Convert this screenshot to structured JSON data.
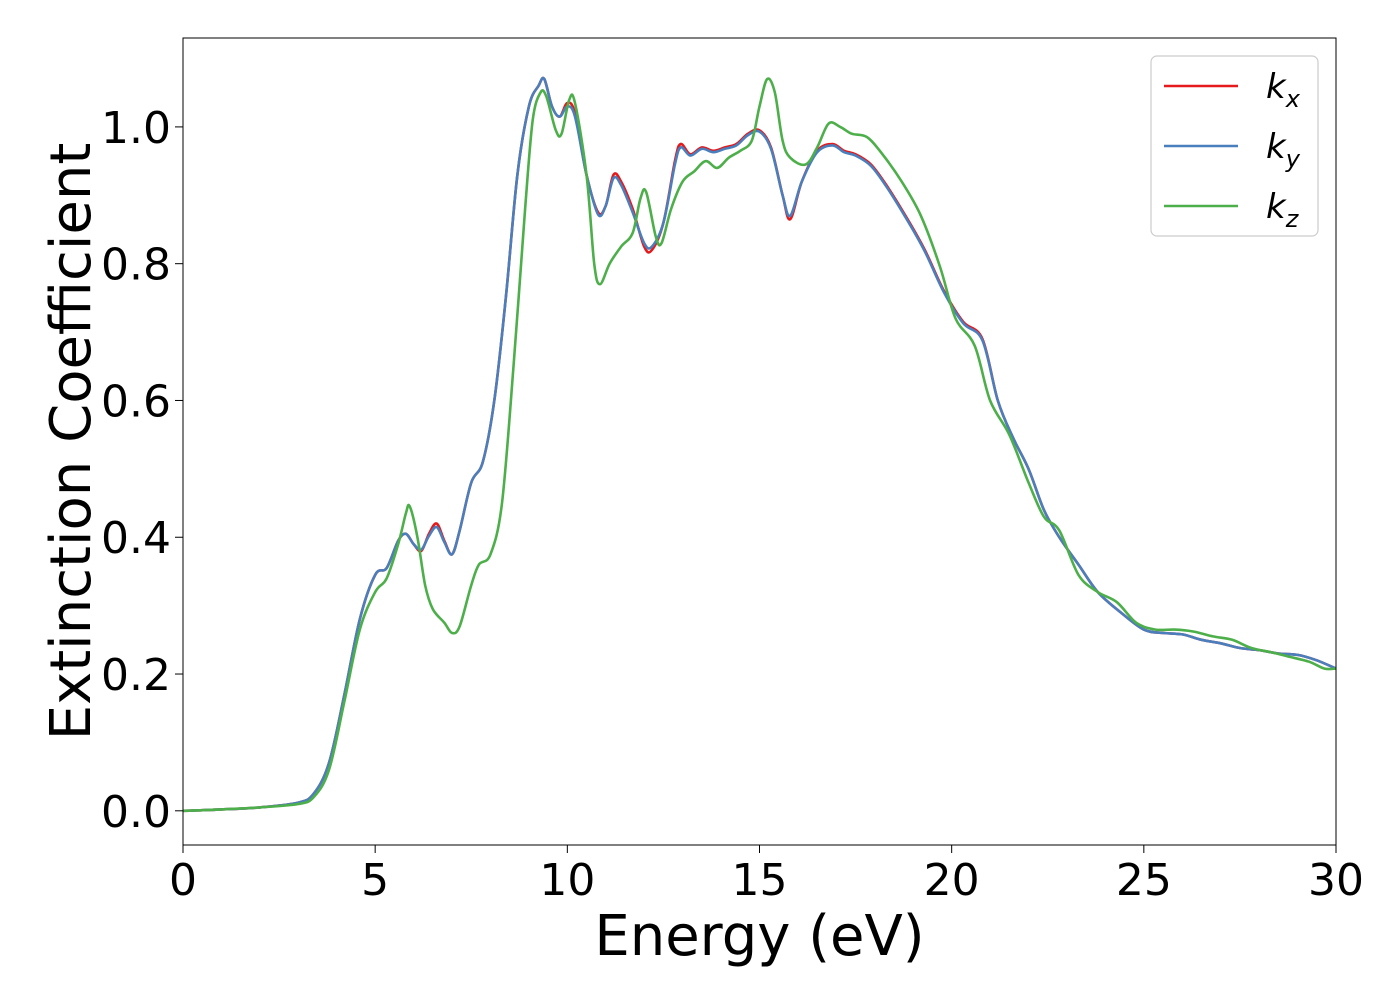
{
  "chart_data": {
    "type": "line",
    "title": "",
    "xlabel": "Energy (eV)",
    "ylabel": "Extinction Coefficient",
    "xlim": [
      0,
      30
    ],
    "ylim": [
      -0.05,
      1.13
    ],
    "xticks": [
      0,
      5,
      10,
      15,
      20,
      25,
      30
    ],
    "xtick_labels": [
      "0",
      "5",
      "10",
      "15",
      "20",
      "25",
      "30"
    ],
    "yticks": [
      0.0,
      0.2,
      0.4,
      0.6,
      0.8,
      1.0
    ],
    "ytick_labels": [
      "0.0",
      "0.2",
      "0.4",
      "0.6",
      "0.8",
      "1.0"
    ],
    "grid": false,
    "legend_position": "top-right",
    "series": [
      {
        "name": "k_x",
        "legend_base": "k",
        "legend_sub": "x",
        "color": "#e41a1c",
        "points": [
          [
            0,
            0.0
          ],
          [
            1,
            0.002
          ],
          [
            2,
            0.005
          ],
          [
            3,
            0.012
          ],
          [
            3.4,
            0.025
          ],
          [
            3.8,
            0.07
          ],
          [
            4.2,
            0.17
          ],
          [
            4.6,
            0.28
          ],
          [
            5.0,
            0.345
          ],
          [
            5.3,
            0.355
          ],
          [
            5.6,
            0.395
          ],
          [
            5.8,
            0.405
          ],
          [
            6.0,
            0.39
          ],
          [
            6.2,
            0.38
          ],
          [
            6.4,
            0.405
          ],
          [
            6.6,
            0.42
          ],
          [
            6.8,
            0.395
          ],
          [
            7.0,
            0.375
          ],
          [
            7.2,
            0.41
          ],
          [
            7.5,
            0.48
          ],
          [
            7.8,
            0.51
          ],
          [
            8.1,
            0.6
          ],
          [
            8.4,
            0.75
          ],
          [
            8.7,
            0.93
          ],
          [
            9.0,
            1.03
          ],
          [
            9.25,
            1.06
          ],
          [
            9.4,
            1.07
          ],
          [
            9.6,
            1.03
          ],
          [
            9.8,
            1.015
          ],
          [
            10.0,
            1.035
          ],
          [
            10.2,
            1.02
          ],
          [
            10.5,
            0.93
          ],
          [
            10.8,
            0.875
          ],
          [
            11.0,
            0.885
          ],
          [
            11.2,
            0.93
          ],
          [
            11.4,
            0.92
          ],
          [
            11.7,
            0.88
          ],
          [
            12.0,
            0.825
          ],
          [
            12.2,
            0.82
          ],
          [
            12.5,
            0.86
          ],
          [
            12.8,
            0.95
          ],
          [
            12.95,
            0.975
          ],
          [
            13.2,
            0.96
          ],
          [
            13.5,
            0.97
          ],
          [
            13.8,
            0.965
          ],
          [
            14.1,
            0.97
          ],
          [
            14.4,
            0.975
          ],
          [
            14.7,
            0.99
          ],
          [
            15.0,
            0.995
          ],
          [
            15.3,
            0.97
          ],
          [
            15.6,
            0.9
          ],
          [
            15.8,
            0.865
          ],
          [
            16.1,
            0.92
          ],
          [
            16.5,
            0.965
          ],
          [
            16.9,
            0.975
          ],
          [
            17.2,
            0.965
          ],
          [
            17.5,
            0.96
          ],
          [
            17.9,
            0.945
          ],
          [
            18.3,
            0.915
          ],
          [
            18.8,
            0.87
          ],
          [
            19.3,
            0.82
          ],
          [
            19.8,
            0.76
          ],
          [
            20.3,
            0.715
          ],
          [
            20.8,
            0.69
          ],
          [
            21.2,
            0.6
          ],
          [
            21.6,
            0.545
          ],
          [
            22.0,
            0.5
          ],
          [
            22.4,
            0.44
          ],
          [
            22.8,
            0.4
          ],
          [
            23.3,
            0.36
          ],
          [
            23.8,
            0.32
          ],
          [
            24.4,
            0.29
          ],
          [
            25.0,
            0.265
          ],
          [
            25.5,
            0.26
          ],
          [
            26.0,
            0.258
          ],
          [
            26.5,
            0.25
          ],
          [
            27.0,
            0.245
          ],
          [
            27.5,
            0.238
          ],
          [
            28.0,
            0.235
          ],
          [
            28.5,
            0.23
          ],
          [
            29.0,
            0.228
          ],
          [
            29.5,
            0.22
          ],
          [
            30.0,
            0.208
          ]
        ]
      },
      {
        "name": "k_y",
        "legend_base": "k",
        "legend_sub": "y",
        "color": "#4a7fbd",
        "points": [
          [
            0,
            0.0
          ],
          [
            1,
            0.002
          ],
          [
            2,
            0.005
          ],
          [
            3,
            0.012
          ],
          [
            3.4,
            0.025
          ],
          [
            3.8,
            0.07
          ],
          [
            4.2,
            0.17
          ],
          [
            4.6,
            0.28
          ],
          [
            5.0,
            0.345
          ],
          [
            5.3,
            0.355
          ],
          [
            5.6,
            0.395
          ],
          [
            5.8,
            0.405
          ],
          [
            6.0,
            0.39
          ],
          [
            6.2,
            0.382
          ],
          [
            6.4,
            0.402
          ],
          [
            6.6,
            0.415
          ],
          [
            6.8,
            0.393
          ],
          [
            7.0,
            0.375
          ],
          [
            7.2,
            0.41
          ],
          [
            7.5,
            0.48
          ],
          [
            7.8,
            0.51
          ],
          [
            8.1,
            0.6
          ],
          [
            8.4,
            0.75
          ],
          [
            8.7,
            0.93
          ],
          [
            9.0,
            1.03
          ],
          [
            9.25,
            1.06
          ],
          [
            9.4,
            1.07
          ],
          [
            9.6,
            1.03
          ],
          [
            9.8,
            1.015
          ],
          [
            10.0,
            1.03
          ],
          [
            10.2,
            1.015
          ],
          [
            10.5,
            0.93
          ],
          [
            10.8,
            0.872
          ],
          [
            11.0,
            0.885
          ],
          [
            11.2,
            0.925
          ],
          [
            11.4,
            0.915
          ],
          [
            11.7,
            0.875
          ],
          [
            12.0,
            0.83
          ],
          [
            12.2,
            0.825
          ],
          [
            12.5,
            0.86
          ],
          [
            12.8,
            0.945
          ],
          [
            12.95,
            0.97
          ],
          [
            13.2,
            0.958
          ],
          [
            13.5,
            0.968
          ],
          [
            13.8,
            0.963
          ],
          [
            14.1,
            0.968
          ],
          [
            14.4,
            0.973
          ],
          [
            14.7,
            0.988
          ],
          [
            15.0,
            0.993
          ],
          [
            15.3,
            0.968
          ],
          [
            15.6,
            0.9
          ],
          [
            15.8,
            0.87
          ],
          [
            16.1,
            0.92
          ],
          [
            16.5,
            0.963
          ],
          [
            16.9,
            0.973
          ],
          [
            17.2,
            0.963
          ],
          [
            17.5,
            0.958
          ],
          [
            17.9,
            0.943
          ],
          [
            18.3,
            0.913
          ],
          [
            18.8,
            0.868
          ],
          [
            19.3,
            0.818
          ],
          [
            19.8,
            0.758
          ],
          [
            20.3,
            0.713
          ],
          [
            20.8,
            0.688
          ],
          [
            21.2,
            0.6
          ],
          [
            21.6,
            0.545
          ],
          [
            22.0,
            0.5
          ],
          [
            22.4,
            0.44
          ],
          [
            22.8,
            0.4
          ],
          [
            23.3,
            0.36
          ],
          [
            23.8,
            0.32
          ],
          [
            24.4,
            0.29
          ],
          [
            25.0,
            0.265
          ],
          [
            25.5,
            0.26
          ],
          [
            26.0,
            0.258
          ],
          [
            26.5,
            0.25
          ],
          [
            27.0,
            0.245
          ],
          [
            27.5,
            0.238
          ],
          [
            28.0,
            0.235
          ],
          [
            28.5,
            0.23
          ],
          [
            29.0,
            0.228
          ],
          [
            29.5,
            0.22
          ],
          [
            30.0,
            0.208
          ]
        ]
      },
      {
        "name": "k_z",
        "legend_base": "k",
        "legend_sub": "z",
        "color": "#4daf4a",
        "points": [
          [
            0,
            0.0
          ],
          [
            1,
            0.002
          ],
          [
            2,
            0.005
          ],
          [
            3,
            0.01
          ],
          [
            3.4,
            0.02
          ],
          [
            3.8,
            0.06
          ],
          [
            4.2,
            0.16
          ],
          [
            4.6,
            0.265
          ],
          [
            5.0,
            0.32
          ],
          [
            5.3,
            0.34
          ],
          [
            5.6,
            0.39
          ],
          [
            5.8,
            0.435
          ],
          [
            5.9,
            0.445
          ],
          [
            6.1,
            0.4
          ],
          [
            6.3,
            0.33
          ],
          [
            6.5,
            0.295
          ],
          [
            6.8,
            0.275
          ],
          [
            7.0,
            0.26
          ],
          [
            7.2,
            0.27
          ],
          [
            7.5,
            0.33
          ],
          [
            7.7,
            0.36
          ],
          [
            8.0,
            0.375
          ],
          [
            8.3,
            0.45
          ],
          [
            8.6,
            0.65
          ],
          [
            8.9,
            0.88
          ],
          [
            9.1,
            1.01
          ],
          [
            9.3,
            1.05
          ],
          [
            9.45,
            1.045
          ],
          [
            9.7,
            0.995
          ],
          [
            9.85,
            0.99
          ],
          [
            10.05,
            1.04
          ],
          [
            10.2,
            1.035
          ],
          [
            10.5,
            0.93
          ],
          [
            10.7,
            0.8
          ],
          [
            10.85,
            0.77
          ],
          [
            11.1,
            0.8
          ],
          [
            11.4,
            0.825
          ],
          [
            11.7,
            0.845
          ],
          [
            11.9,
            0.895
          ],
          [
            12.05,
            0.905
          ],
          [
            12.3,
            0.84
          ],
          [
            12.45,
            0.83
          ],
          [
            12.7,
            0.88
          ],
          [
            13.0,
            0.92
          ],
          [
            13.3,
            0.935
          ],
          [
            13.6,
            0.95
          ],
          [
            13.9,
            0.94
          ],
          [
            14.2,
            0.955
          ],
          [
            14.5,
            0.965
          ],
          [
            14.8,
            0.98
          ],
          [
            15.0,
            1.03
          ],
          [
            15.2,
            1.07
          ],
          [
            15.4,
            1.05
          ],
          [
            15.6,
            0.98
          ],
          [
            15.8,
            0.955
          ],
          [
            16.2,
            0.945
          ],
          [
            16.5,
            0.97
          ],
          [
            16.8,
            1.005
          ],
          [
            17.1,
            1.0
          ],
          [
            17.4,
            0.99
          ],
          [
            17.8,
            0.985
          ],
          [
            18.2,
            0.96
          ],
          [
            18.7,
            0.92
          ],
          [
            19.2,
            0.87
          ],
          [
            19.7,
            0.795
          ],
          [
            20.1,
            0.72
          ],
          [
            20.6,
            0.68
          ],
          [
            21.0,
            0.6
          ],
          [
            21.5,
            0.55
          ],
          [
            22.0,
            0.48
          ],
          [
            22.4,
            0.43
          ],
          [
            22.8,
            0.41
          ],
          [
            23.3,
            0.345
          ],
          [
            23.8,
            0.32
          ],
          [
            24.3,
            0.305
          ],
          [
            24.8,
            0.275
          ],
          [
            25.3,
            0.265
          ],
          [
            25.8,
            0.265
          ],
          [
            26.3,
            0.262
          ],
          [
            26.8,
            0.255
          ],
          [
            27.3,
            0.25
          ],
          [
            27.8,
            0.238
          ],
          [
            28.3,
            0.232
          ],
          [
            28.8,
            0.225
          ],
          [
            29.3,
            0.218
          ],
          [
            29.7,
            0.208
          ],
          [
            30.0,
            0.208
          ]
        ]
      }
    ]
  }
}
